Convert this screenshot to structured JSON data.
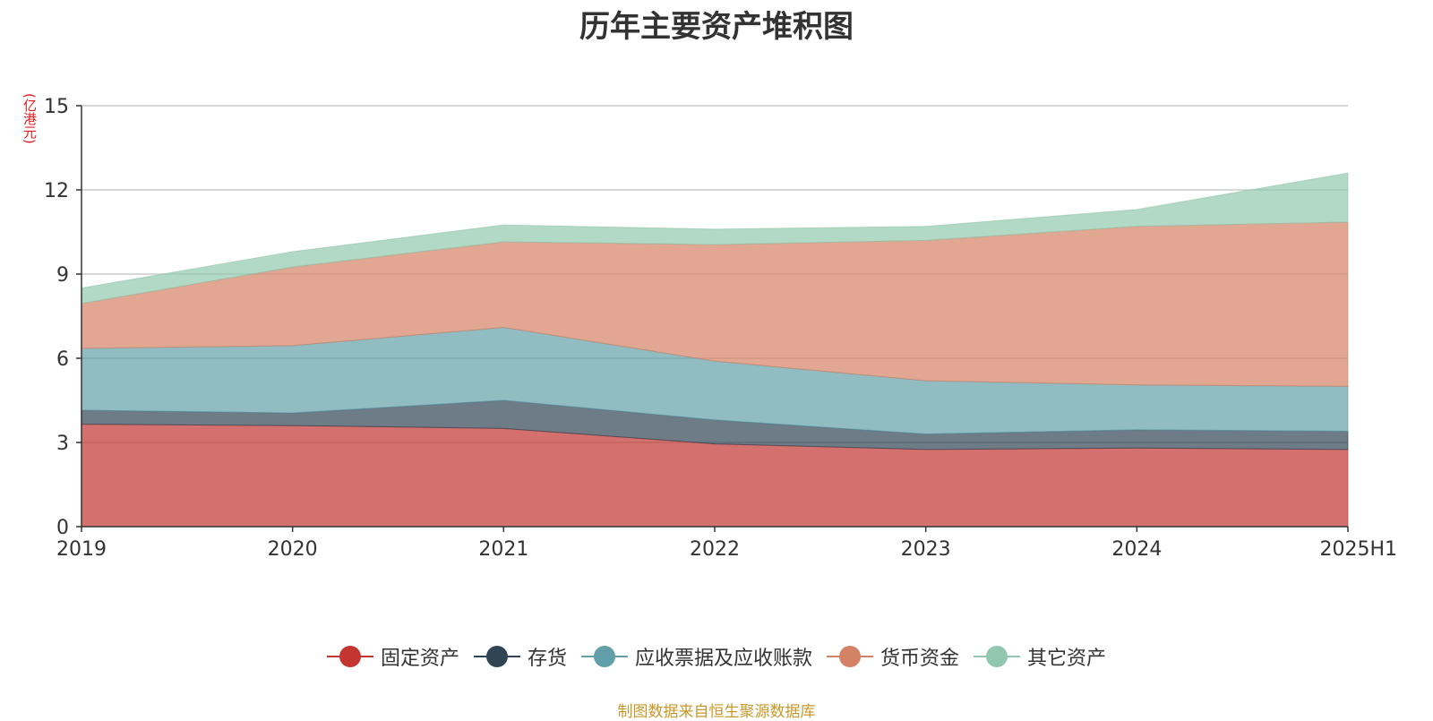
{
  "chart_data": {
    "type": "area",
    "title": "历年主要资产堆积图",
    "ylabel": "(亿港元)",
    "x": [
      "2019",
      "2020",
      "2021",
      "2022",
      "2023",
      "2024",
      "2025H1"
    ],
    "ylim": [
      0,
      15
    ],
    "yticks": [
      0,
      3,
      6,
      9,
      12,
      15
    ],
    "stacked": true,
    "grid": true,
    "legend_position": "bottom",
    "series": [
      {
        "name": "固定资产",
        "color": "#c23531",
        "values": [
          3.65,
          3.6,
          3.5,
          2.95,
          2.75,
          2.8,
          2.75
        ]
      },
      {
        "name": "存货",
        "color": "#2f4554",
        "values": [
          0.5,
          0.45,
          1.0,
          0.85,
          0.55,
          0.65,
          0.65
        ]
      },
      {
        "name": "应收票据及应收账款",
        "color": "#61a0a8",
        "values": [
          2.2,
          2.4,
          2.6,
          2.1,
          1.9,
          1.6,
          1.6
        ]
      },
      {
        "name": "货币资金",
        "color": "#d48265",
        "values": [
          1.6,
          2.8,
          3.05,
          4.15,
          5.0,
          5.65,
          5.85
        ]
      },
      {
        "name": "其它资产",
        "color": "#91c7ae",
        "values": [
          0.55,
          0.55,
          0.6,
          0.55,
          0.5,
          0.6,
          1.75
        ]
      }
    ]
  },
  "source_note": "制图数据来自恒生聚源数据库"
}
